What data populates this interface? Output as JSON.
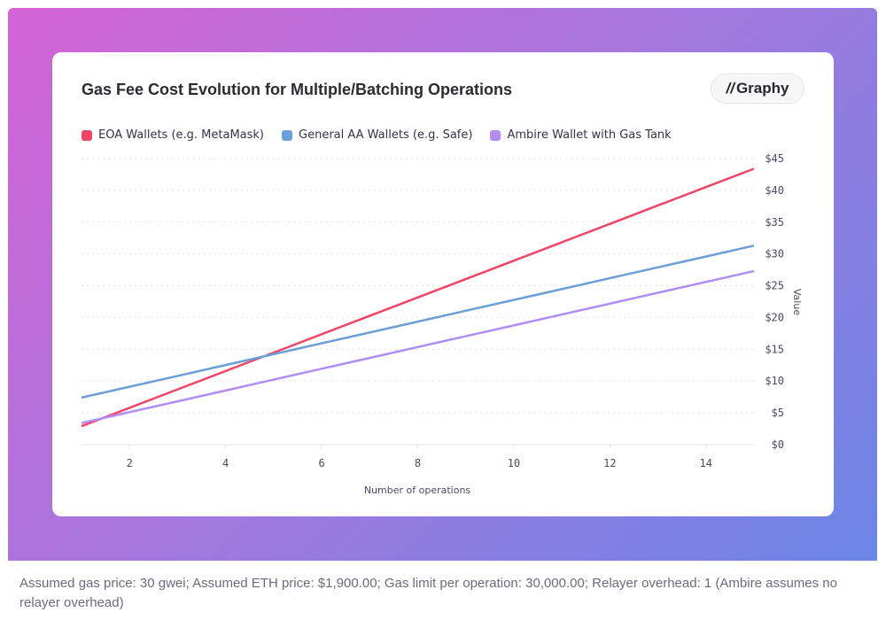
{
  "chart_data": {
    "type": "line",
    "title": "Gas Fee Cost Evolution for Multiple/Batching Operations",
    "xlabel": "Number of operations",
    "ylabel": "Value",
    "x": [
      1,
      2,
      3,
      4,
      5,
      6,
      7,
      8,
      9,
      10,
      11,
      12,
      13,
      14,
      15
    ],
    "xlim": [
      1,
      15
    ],
    "ylim": [
      0,
      45
    ],
    "xticks": [
      2,
      4,
      6,
      8,
      10,
      12,
      14
    ],
    "yticks": [
      "$0",
      "$5",
      "$10",
      "$15",
      "$20",
      "$25",
      "$30",
      "$35",
      "$40",
      "$45"
    ],
    "grid": "horizontal dotted",
    "legend": "top-left",
    "y_axis_side": "right",
    "series": [
      {
        "name": "EOA Wallets (e.g. MetaMask)",
        "color": "#ef4567",
        "values": [
          2.9,
          5.79,
          8.69,
          11.58,
          14.47,
          17.37,
          20.26,
          23.15,
          26.04,
          28.94,
          31.83,
          34.72,
          37.62,
          40.51,
          43.4
        ]
      },
      {
        "name": "General AA Wallets (e.g. Safe)",
        "color": "#6a9fd8",
        "values": [
          7.4,
          9.11,
          10.81,
          12.52,
          14.23,
          15.94,
          17.64,
          19.35,
          21.06,
          22.76,
          24.47,
          26.18,
          27.89,
          29.59,
          31.3
        ]
      },
      {
        "name": "Ambire Wallet with Gas Tank",
        "color": "#b18cf6",
        "values": [
          3.4,
          5.11,
          6.81,
          8.52,
          10.23,
          11.94,
          13.64,
          15.35,
          17.06,
          18.76,
          20.47,
          22.18,
          23.89,
          25.59,
          27.3
        ]
      }
    ]
  },
  "logo": "Graphy",
  "footer": "Assumed gas price: 30 gwei; Assumed ETH price: $1,900.00; Gas limit per operation: 30,000.00; Relayer overhead: 1 (Ambire assumes no relayer overhead)"
}
